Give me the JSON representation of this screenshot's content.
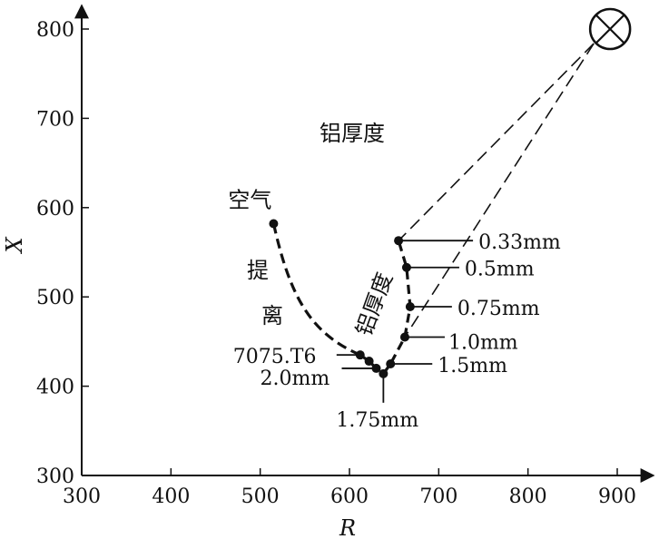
{
  "chart_data": {
    "type": "scatter",
    "title": "",
    "xlabel": "R",
    "ylabel": "X",
    "xlim": [
      300,
      900
    ],
    "ylim": [
      300,
      800
    ],
    "xticks": [
      "300",
      "400",
      "500",
      "600",
      "700",
      "800",
      "900"
    ],
    "yticks": [
      "300",
      "400",
      "500",
      "600",
      "700",
      "800"
    ],
    "grid": false,
    "series": [
      {
        "name": "",
        "points": [
          {
            "x": 515,
            "y": 582,
            "label": "空气"
          },
          {
            "x": 612,
            "y": 435,
            "label": "7075.T6"
          },
          {
            "x": 622,
            "y": 428,
            "label": ""
          },
          {
            "x": 630,
            "y": 420,
            "label": "2.0mm"
          },
          {
            "x": 638,
            "y": 414,
            "label": "1.75mm"
          },
          {
            "x": 646,
            "y": 425,
            "label": "1.5mm"
          },
          {
            "x": 662,
            "y": 455,
            "label": "1.0mm"
          },
          {
            "x": 668,
            "y": 489,
            "label": "0.75mm"
          },
          {
            "x": 664,
            "y": 533,
            "label": "0.5mm"
          },
          {
            "x": 655,
            "y": 563,
            "label": "0.33mm"
          }
        ]
      }
    ],
    "source_point": {
      "x": 892,
      "y": 800
    },
    "annotations": {
      "title_text": "铝厚度",
      "curve_text": "铝厚度",
      "lift_off_1": "提",
      "lift_off_2": "离"
    }
  }
}
